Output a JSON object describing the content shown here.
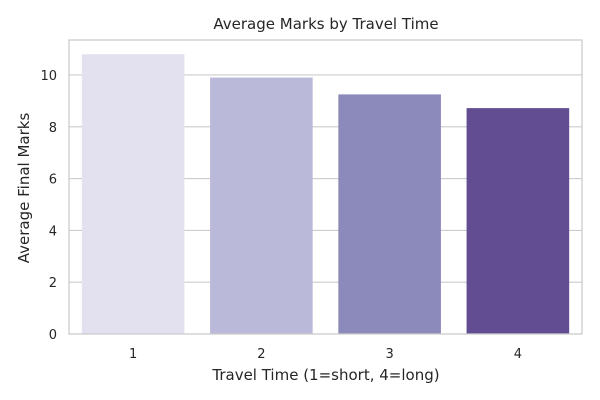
{
  "chart_data": {
    "type": "bar",
    "title": "Average Marks by Travel Time",
    "xlabel": "Travel Time (1=short, 4=long)",
    "ylabel": "Average Final Marks",
    "categories": [
      "1",
      "2",
      "3",
      "4"
    ],
    "values": [
      10.8,
      9.9,
      9.25,
      8.72
    ],
    "yticks": [
      "0",
      "2",
      "4",
      "6",
      "8",
      "10"
    ],
    "ylim": [
      0,
      11.35
    ],
    "grid": "horizontal",
    "colors": [
      "#e3e1ef",
      "#bab9d9",
      "#8b8abb",
      "#624d93"
    ],
    "grid_color": "#cccccc",
    "frame_color": "#cccccc",
    "background": "#ffffff"
  }
}
